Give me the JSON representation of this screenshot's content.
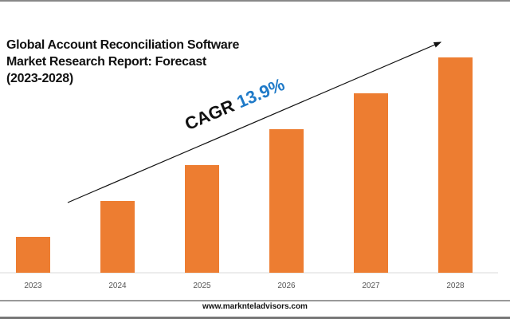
{
  "chart_data": {
    "type": "bar",
    "title": "Global Account Reconciliation Software Market Research Report: Forecast (2023-2028)",
    "title_lines": [
      "Global Account Reconciliation Software",
      "Market Research Report: Forecast",
      "(2023-2028)"
    ],
    "categories": [
      "2023",
      "2024",
      "2025",
      "2026",
      "2027",
      "2028"
    ],
    "values": [
      1,
      2,
      3,
      4,
      5,
      6
    ],
    "ylim": [
      0,
      6
    ],
    "xlabel": "",
    "ylabel": "",
    "grid": false,
    "bar_color": "#ed7d31",
    "annotation": {
      "label": "CAGR",
      "value": "13.9%",
      "value_color": "#1f7ac8"
    }
  },
  "footer": {
    "website": "www.marknteladvisors.com"
  }
}
